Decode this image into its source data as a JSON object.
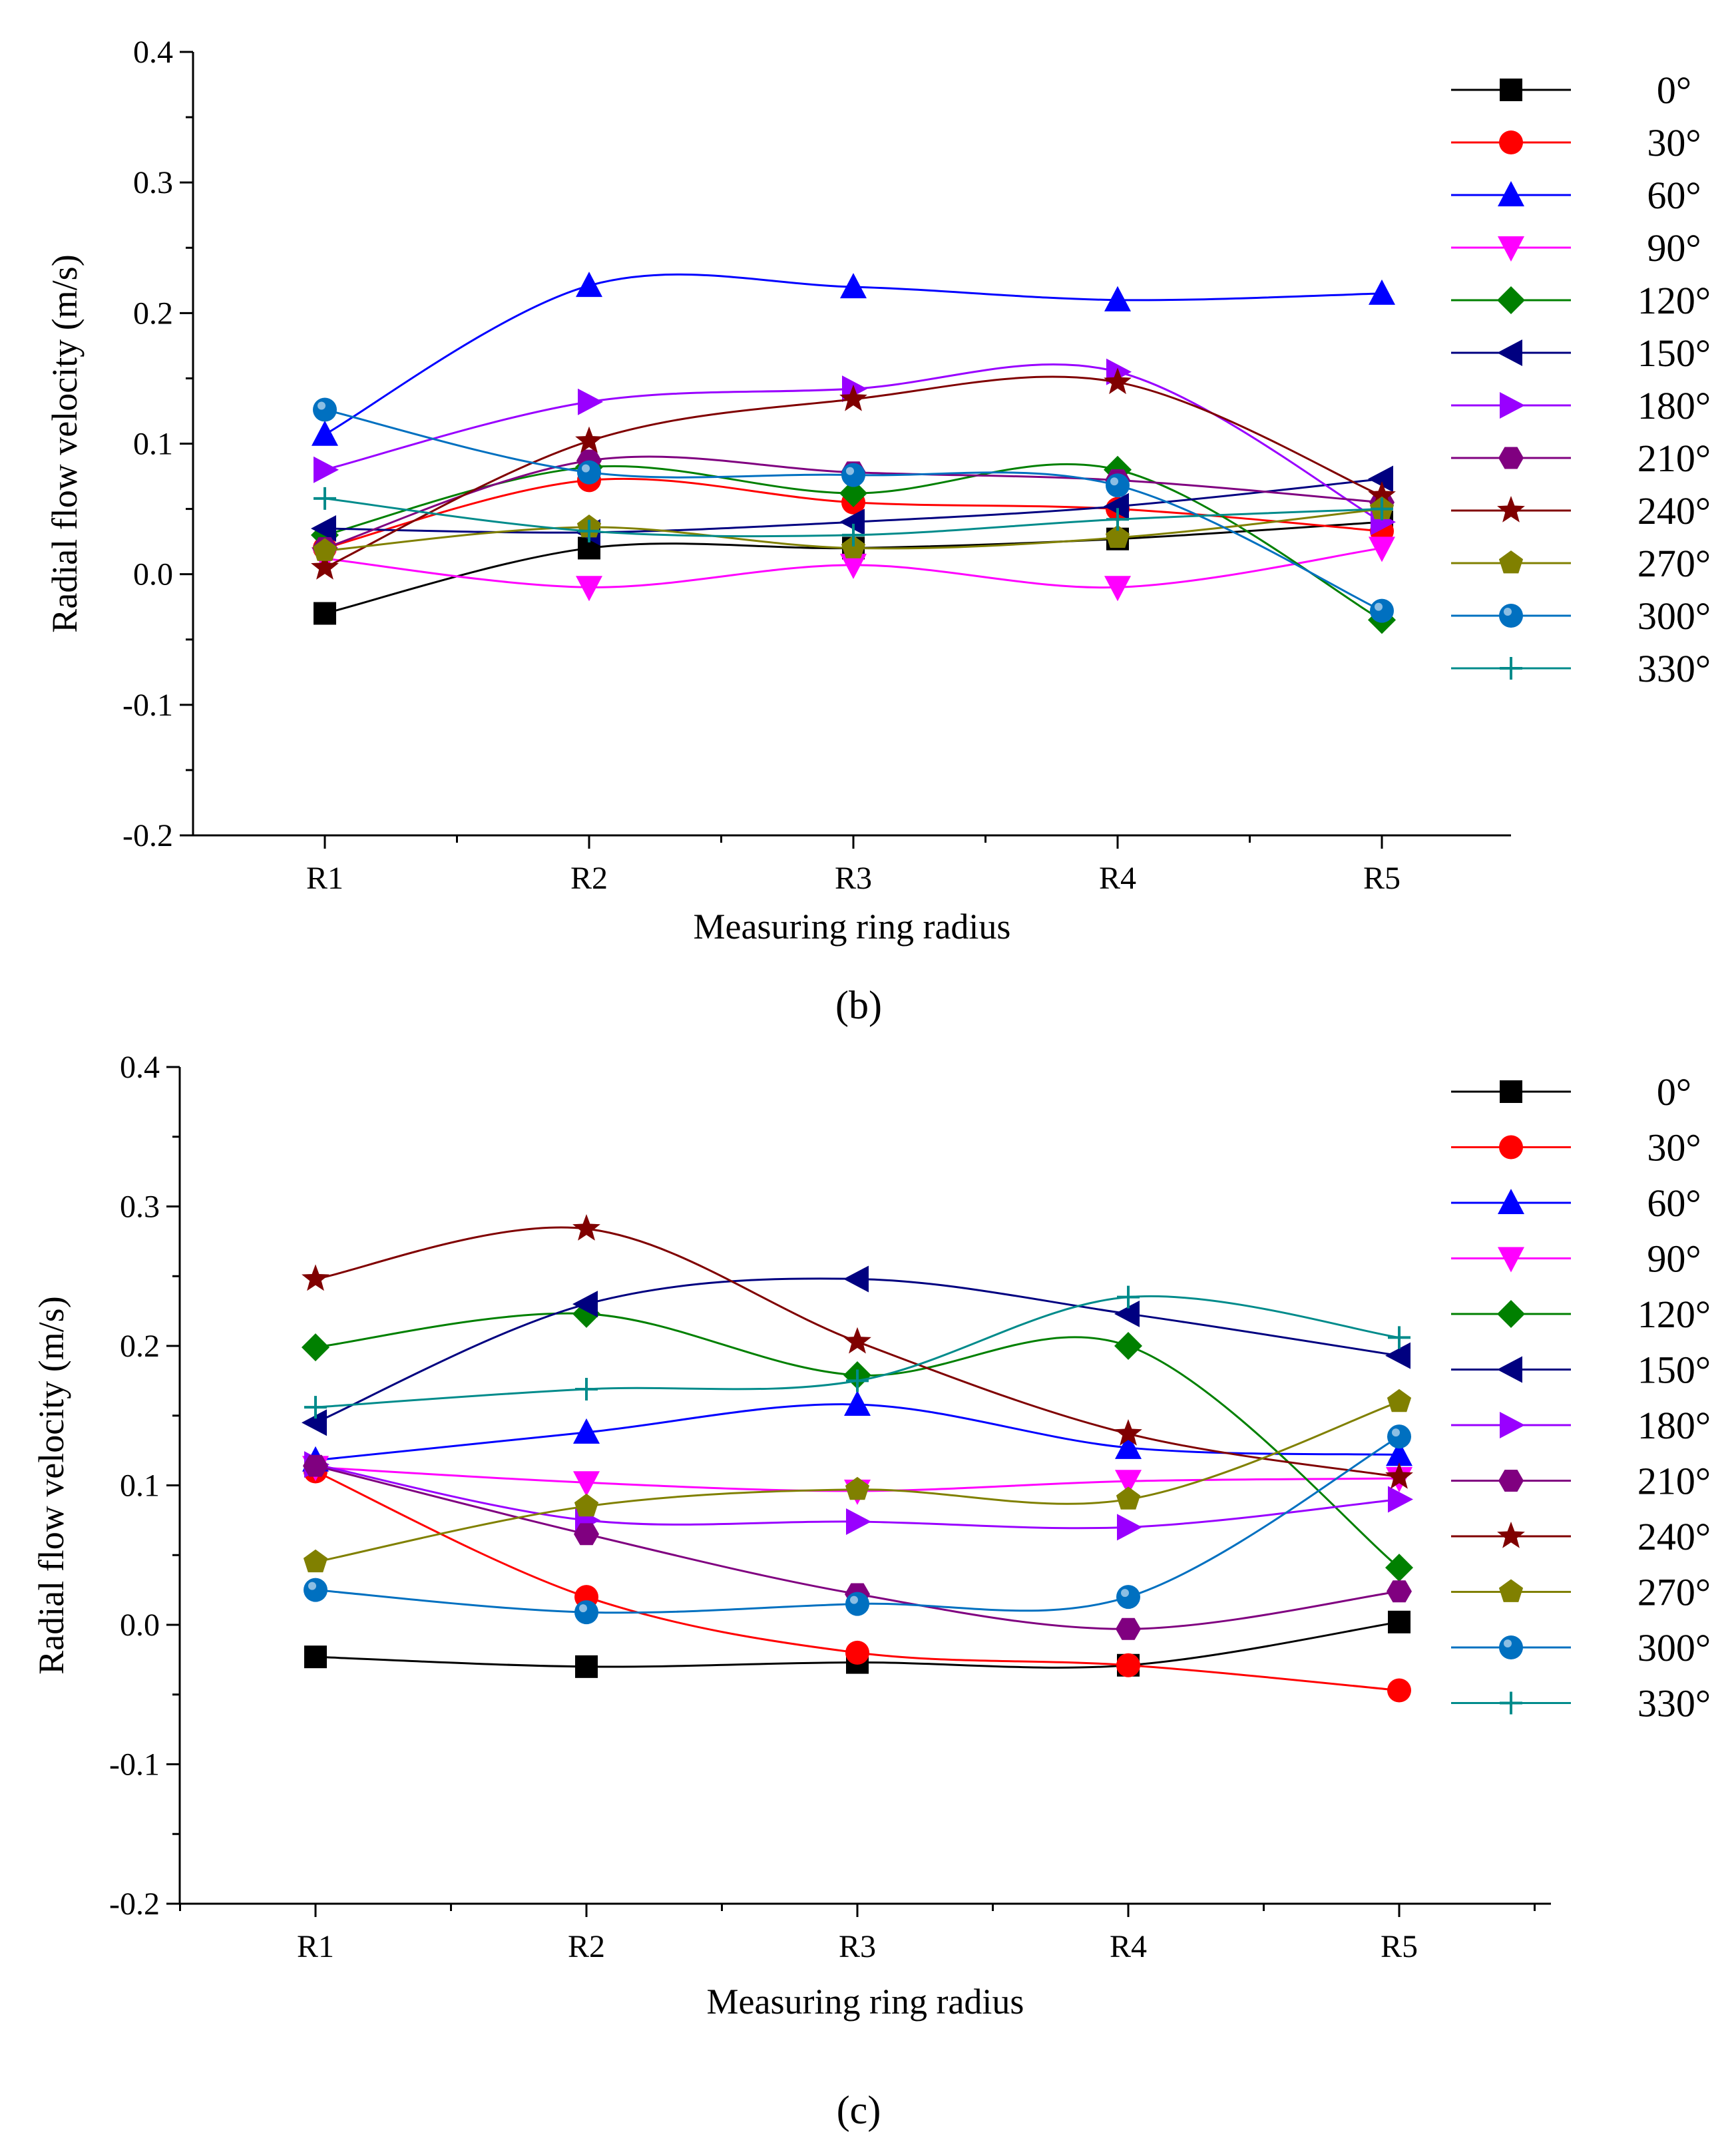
{
  "chart_data": [
    {
      "type": "line",
      "caption": "(b)",
      "xlabel": "Measuring ring radius",
      "ylabel": "Radial flow velocity (m/s)",
      "categories": [
        "R1",
        "R2",
        "R3",
        "R4",
        "R5"
      ],
      "ylim": [
        -0.2,
        0.4
      ],
      "yticks": [
        "-0.2",
        "-0.1",
        "0.0",
        "0.1",
        "0.2",
        "0.3",
        "0.4"
      ],
      "legend_position": "right",
      "series": [
        {
          "name": "0°",
          "color": "#000000",
          "marker": "square",
          "values": [
            -0.03,
            0.02,
            0.02,
            0.027,
            0.04
          ]
        },
        {
          "name": "30°",
          "color": "#ff0000",
          "marker": "circle",
          "values": [
            0.02,
            0.072,
            0.055,
            0.05,
            0.033
          ]
        },
        {
          "name": "60°",
          "color": "#0000ff",
          "marker": "triangle-up",
          "values": [
            0.107,
            0.221,
            0.22,
            0.21,
            0.215
          ]
        },
        {
          "name": "90°",
          "color": "#ff00ff",
          "marker": "triangle-down",
          "values": [
            0.012,
            -0.01,
            0.007,
            -0.01,
            0.02
          ]
        },
        {
          "name": "120°",
          "color": "#008000",
          "marker": "diamond",
          "values": [
            0.03,
            0.082,
            0.062,
            0.08,
            -0.035
          ]
        },
        {
          "name": "150°",
          "color": "#000080",
          "marker": "triangle-left",
          "values": [
            0.035,
            0.032,
            0.04,
            0.052,
            0.073
          ]
        },
        {
          "name": "180°",
          "color": "#9900ff",
          "marker": "triangle-right",
          "values": [
            0.08,
            0.132,
            0.142,
            0.155,
            0.04
          ]
        },
        {
          "name": "210°",
          "color": "#800080",
          "marker": "hexagon",
          "values": [
            0.02,
            0.087,
            0.078,
            0.072,
            0.055
          ]
        },
        {
          "name": "240°",
          "color": "#800000",
          "marker": "star",
          "values": [
            0.005,
            0.102,
            0.134,
            0.147,
            0.06
          ]
        },
        {
          "name": "270°",
          "color": "#808000",
          "marker": "pentagon",
          "values": [
            0.018,
            0.036,
            0.02,
            0.028,
            0.05
          ]
        },
        {
          "name": "300°",
          "color": "#0070c0",
          "marker": "ball",
          "values": [
            0.126,
            0.078,
            0.076,
            0.068,
            -0.028
          ]
        },
        {
          "name": "330°",
          "color": "#008b8b",
          "marker": "plus",
          "values": [
            0.058,
            0.033,
            0.03,
            0.042,
            0.05
          ]
        }
      ]
    },
    {
      "type": "line",
      "caption": "(c)",
      "xlabel": "Measuring ring radius",
      "ylabel": "Radial flow velocity (m/s)",
      "categories": [
        "R1",
        "R2",
        "R3",
        "R4",
        "R5"
      ],
      "ylim": [
        -0.2,
        0.4
      ],
      "yticks": [
        "-0.2",
        "-0.1",
        "0.0",
        "0.1",
        "0.2",
        "0.3",
        "0.4"
      ],
      "legend_position": "right",
      "series": [
        {
          "name": "0°",
          "color": "#000000",
          "marker": "square",
          "values": [
            -0.023,
            -0.03,
            -0.027,
            -0.029,
            0.002
          ]
        },
        {
          "name": "30°",
          "color": "#ff0000",
          "marker": "circle",
          "values": [
            0.11,
            0.02,
            -0.02,
            -0.029,
            -0.047
          ]
        },
        {
          "name": "60°",
          "color": "#0000ff",
          "marker": "triangle-up",
          "values": [
            0.118,
            0.138,
            0.158,
            0.127,
            0.122
          ]
        },
        {
          "name": "90°",
          "color": "#ff00ff",
          "marker": "triangle-down",
          "values": [
            0.113,
            0.102,
            0.096,
            0.103,
            0.105
          ]
        },
        {
          "name": "120°",
          "color": "#008000",
          "marker": "diamond",
          "values": [
            0.199,
            0.223,
            0.179,
            0.2,
            0.041
          ]
        },
        {
          "name": "150°",
          "color": "#000080",
          "marker": "triangle-left",
          "values": [
            0.145,
            0.23,
            0.248,
            0.223,
            0.193
          ]
        },
        {
          "name": "180°",
          "color": "#9900ff",
          "marker": "triangle-right",
          "values": [
            0.115,
            0.075,
            0.074,
            0.07,
            0.09
          ]
        },
        {
          "name": "210°",
          "color": "#800080",
          "marker": "hexagon",
          "values": [
            0.114,
            0.065,
            0.022,
            -0.003,
            0.024
          ]
        },
        {
          "name": "240°",
          "color": "#800000",
          "marker": "star",
          "values": [
            0.248,
            0.284,
            0.203,
            0.137,
            0.106
          ]
        },
        {
          "name": "270°",
          "color": "#808000",
          "marker": "pentagon",
          "values": [
            0.045,
            0.085,
            0.097,
            0.09,
            0.16
          ]
        },
        {
          "name": "300°",
          "color": "#0070c0",
          "marker": "ball",
          "values": [
            0.025,
            0.009,
            0.015,
            0.02,
            0.135
          ]
        },
        {
          "name": "330°",
          "color": "#008b8b",
          "marker": "plus",
          "values": [
            0.156,
            0.169,
            0.175,
            0.235,
            0.206
          ]
        }
      ]
    }
  ]
}
